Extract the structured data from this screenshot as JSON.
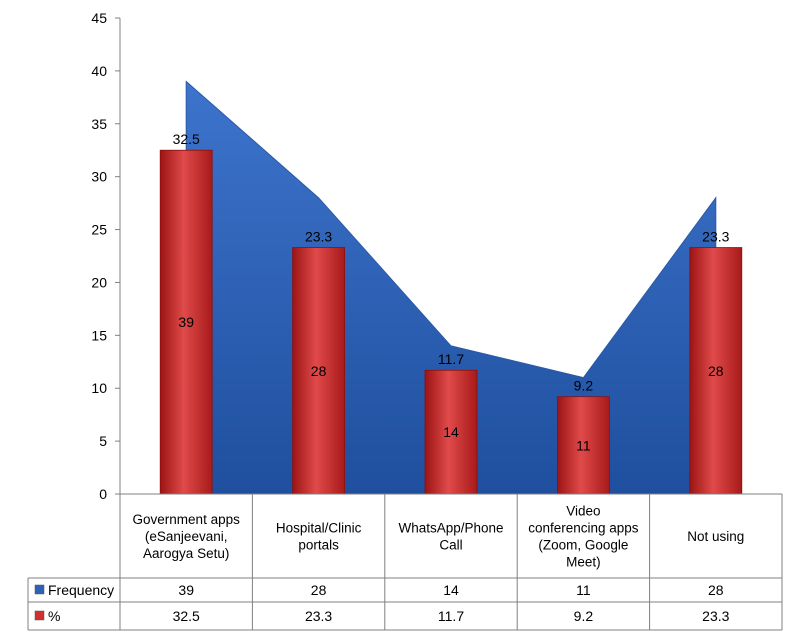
{
  "chart_data": {
    "type": "bar",
    "categories": [
      [
        "Government apps",
        "(eSanjeevani,",
        "Aarogya Setu)"
      ],
      [
        "Hospital/Clinic",
        "portals"
      ],
      [
        "WhatsApp/Phone",
        "Call"
      ],
      [
        "Video",
        "conferencing apps",
        "(Zoom, Google",
        "Meet)"
      ],
      [
        "Not using"
      ]
    ],
    "series": [
      {
        "name": "Frequency",
        "chart": "area",
        "color": "#2E62B8",
        "values": [
          39,
          28,
          14,
          11,
          28
        ]
      },
      {
        "name": "%",
        "chart": "bar",
        "color": "#D42F2F",
        "values": [
          32.5,
          23.3,
          11.7,
          9.2,
          23.3
        ]
      }
    ],
    "ylim": [
      0,
      45
    ],
    "yticks": [
      0,
      5,
      10,
      15,
      20,
      25,
      30,
      35,
      40,
      45
    ],
    "grid": false,
    "legend": "data-table"
  }
}
